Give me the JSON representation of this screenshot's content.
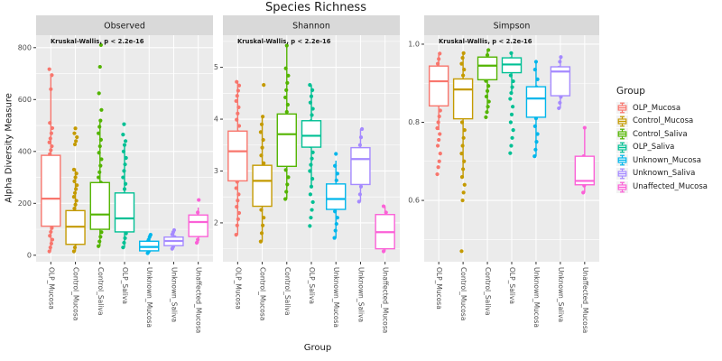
{
  "chart_data": {
    "type": "boxplot",
    "title": "Species Richness",
    "xlabel": "Group",
    "ylabel": "Alpha Diversity Measure",
    "annotation": "Kruskal-Wallis, p < 2.2e-16",
    "facets": [
      "Observed",
      "Shannon",
      "Simpson"
    ],
    "categories": [
      "OLP_Mucosa",
      "Control_Mucosa",
      "Control_Saliva",
      "OLP_Saliva",
      "Unknown_Mucosa",
      "Unknown_Saliva",
      "Unaffected_Mucosa"
    ],
    "legend": {
      "title": "Group",
      "items": [
        {
          "label": "OLP_Mucosa",
          "color": "#F8766D"
        },
        {
          "label": "Control_Mucosa",
          "color": "#C49A00"
        },
        {
          "label": "Control_Saliva",
          "color": "#53B400"
        },
        {
          "label": "OLP_Saliva",
          "color": "#00C094"
        },
        {
          "label": "Unknown_Mucosa",
          "color": "#00B6EB"
        },
        {
          "label": "Unknown_Saliva",
          "color": "#A58AFF"
        },
        {
          "label": "Unaffected_Mucosa",
          "color": "#FB61D7"
        }
      ]
    },
    "panels": [
      {
        "name": "Observed",
        "ylim": [
          -25,
          848
        ],
        "y_ticks": [
          {
            "v": 0,
            "label": "0"
          },
          {
            "v": 200,
            "label": "200"
          },
          {
            "v": 400,
            "label": "400"
          },
          {
            "v": 600,
            "label": "600"
          },
          {
            "v": 800,
            "label": "800"
          }
        ],
        "y_minor": [
          100,
          300,
          500,
          700
        ],
        "groups": [
          {
            "box": {
              "low": 18,
              "q1": 112,
              "med": 218,
              "q3": 385,
              "high": 700
            },
            "points": [
              15,
              30,
              45,
              60,
              75,
              90,
              105,
              120,
              135,
              150,
              165,
              180,
              195,
              210,
              225,
              240,
              255,
              270,
              285,
              300,
              315,
              330,
              345,
              360,
              375,
              390,
              405,
              420,
              435,
              450,
              470,
              490,
              510,
              640,
              694,
              717
            ]
          },
          {
            "box": {
              "low": 15,
              "q1": 42,
              "med": 110,
              "q3": 172,
              "high": 335
            },
            "points": [
              15,
              30,
              45,
              60,
              75,
              90,
              105,
              120,
              135,
              150,
              165,
              180,
              195,
              210,
              225,
              240,
              255,
              270,
              285,
              300,
              315,
              330,
              427,
              440,
              455,
              470,
              489
            ]
          },
          {
            "box": {
              "low": 35,
              "q1": 100,
              "med": 157,
              "q3": 280,
              "high": 519
            },
            "points": [
              35,
              53,
              71,
              89,
              107,
              125,
              143,
              161,
              180,
              200,
              220,
              240,
              260,
              280,
              300,
              320,
              345,
              370,
              395,
              420,
              445,
              470,
              495,
              519,
              560,
              624,
              726,
              810
            ]
          },
          {
            "box": {
              "low": 30,
              "q1": 90,
              "med": 142,
              "q3": 240,
              "high": 425
            },
            "points": [
              30,
              48,
              66,
              84,
              102,
              120,
              138,
              156,
              175,
              195,
              215,
              235,
              255,
              275,
              300,
              325,
              350,
              375,
              400,
              425,
              440,
              465,
              505
            ]
          },
          {
            "box": {
              "low": 8,
              "q1": 17,
              "med": 32,
              "q3": 54,
              "high": 79
            },
            "points": [
              8,
              14,
              20,
              26,
              32,
              38,
              45,
              52,
              60,
              70,
              79
            ]
          },
          {
            "box": {
              "low": 25,
              "q1": 37,
              "med": 55,
              "q3": 70,
              "high": 97
            },
            "points": [
              25,
              33,
              41,
              48,
              55,
              62,
              70,
              80,
              89,
              97
            ]
          },
          {
            "box": {
              "low": 48,
              "q1": 72,
              "med": 128,
              "q3": 155,
              "high": 184
            },
            "points": [
              48,
              60,
              75,
              90,
              105,
              120,
              135,
              150,
              165,
              213
            ]
          }
        ]
      },
      {
        "name": "Shannon",
        "ylim": [
          1.25,
          5.62
        ],
        "y_ticks": [
          {
            "v": 2,
            "label": "2"
          },
          {
            "v": 3,
            "label": "3"
          },
          {
            "v": 4,
            "label": "4"
          },
          {
            "v": 5,
            "label": "5"
          }
        ],
        "y_minor": [
          1.5,
          2.5,
          3.5,
          4.5,
          5.5
        ],
        "groups": [
          {
            "box": {
              "low": 1.77,
              "q1": 2.81,
              "med": 3.38,
              "q3": 3.77,
              "high": 4.72
            },
            "points": [
              1.77,
              1.95,
              2.07,
              2.19,
              2.31,
              2.43,
              2.55,
              2.67,
              2.79,
              2.91,
              3.03,
              3.15,
              3.27,
              3.39,
              3.51,
              3.63,
              3.75,
              3.87,
              3.99,
              4.11,
              4.23,
              4.35,
              4.45,
              4.55,
              4.65,
              4.72
            ]
          },
          {
            "box": {
              "low": 1.64,
              "q1": 2.32,
              "med": 2.81,
              "q3": 3.11,
              "high": 4.05
            },
            "points": [
              1.64,
              1.8,
              1.95,
              2.1,
              2.25,
              2.4,
              2.55,
              2.7,
              2.85,
              3.0,
              3.15,
              3.3,
              3.45,
              3.6,
              3.75,
              3.9,
              4.05,
              4.66
            ]
          },
          {
            "box": {
              "low": 2.46,
              "q1": 3.09,
              "med": 3.71,
              "q3": 4.1,
              "high": 5.42
            },
            "points": [
              2.46,
              2.6,
              2.74,
              2.88,
              3.02,
              3.16,
              3.3,
              3.44,
              3.58,
              3.72,
              3.86,
              4.0,
              4.14,
              4.28,
              4.42,
              4.56,
              4.7,
              4.84,
              4.98,
              5.42
            ]
          },
          {
            "box": {
              "low": 2.7,
              "q1": 3.46,
              "med": 3.68,
              "q3": 3.97,
              "high": 4.66
            },
            "points": [
              1.94,
              2.1,
              2.25,
              2.4,
              2.55,
              2.7,
              2.85,
              3.0,
              3.12,
              3.24,
              3.36,
              3.48,
              3.6,
              3.72,
              3.84,
              3.96,
              4.08,
              4.2,
              4.32,
              4.44,
              4.56,
              4.66
            ]
          },
          {
            "box": {
              "low": 1.71,
              "q1": 2.26,
              "med": 2.46,
              "q3": 2.75,
              "high": 3.2
            },
            "points": [
              1.71,
              1.85,
              1.98,
              2.1,
              2.22,
              2.34,
              2.46,
              2.58,
              2.7,
              2.82,
              2.95,
              3.1,
              3.33
            ]
          },
          {
            "box": {
              "low": 2.41,
              "q1": 2.74,
              "med": 3.23,
              "q3": 3.45,
              "high": 3.81
            },
            "points": [
              2.41,
              2.55,
              2.7,
              2.85,
              3.0,
              3.12,
              3.24,
              3.36,
              3.5,
              3.65,
              3.81
            ]
          },
          {
            "box": {
              "low": 1.45,
              "q1": 1.5,
              "med": 1.82,
              "q3": 2.16,
              "high": 2.32
            },
            "points": [
              1.45,
              1.58,
              1.7,
              1.82,
              1.95,
              2.08,
              2.2,
              2.32
            ]
          }
        ]
      },
      {
        "name": "Simpson",
        "ylim": [
          0.443,
          1.023
        ],
        "y_ticks": [
          {
            "v": 0.6,
            "label": "0.6"
          },
          {
            "v": 0.8,
            "label": "0.8"
          },
          {
            "v": 1.0,
            "label": "1.0"
          }
        ],
        "y_minor": [
          0.5,
          0.7,
          0.9
        ],
        "groups": [
          {
            "box": {
              "low": 0.78,
              "q1": 0.842,
              "med": 0.905,
              "q3": 0.944,
              "high": 0.976
            },
            "points": [
              0.667,
              0.685,
              0.7,
              0.72,
              0.74,
              0.755,
              0.77,
              0.785,
              0.8,
              0.815,
              0.83,
              0.845,
              0.86,
              0.875,
              0.89,
              0.905,
              0.92,
              0.935,
              0.95,
              0.962,
              0.976
            ]
          },
          {
            "box": {
              "low": 0.66,
              "q1": 0.809,
              "med": 0.884,
              "q3": 0.911,
              "high": 0.977
            },
            "points": [
              0.47,
              0.6,
              0.62,
              0.64,
              0.66,
              0.68,
              0.7,
              0.72,
              0.74,
              0.76,
              0.78,
              0.8,
              0.815,
              0.83,
              0.845,
              0.86,
              0.875,
              0.89,
              0.905,
              0.92,
              0.935,
              0.95,
              0.965,
              0.977
            ]
          },
          {
            "box": {
              "low": 0.83,
              "q1": 0.909,
              "med": 0.945,
              "q3": 0.967,
              "high": 0.985
            },
            "points": [
              0.813,
              0.826,
              0.84,
              0.853,
              0.866,
              0.88,
              0.893,
              0.906,
              0.92,
              0.933,
              0.946,
              0.96,
              0.972,
              0.985
            ]
          },
          {
            "box": {
              "low": 0.87,
              "q1": 0.927,
              "med": 0.948,
              "q3": 0.965,
              "high": 0.977
            },
            "points": [
              0.721,
              0.74,
              0.76,
              0.78,
              0.8,
              0.82,
              0.84,
              0.86,
              0.875,
              0.89,
              0.905,
              0.92,
              0.935,
              0.95,
              0.962,
              0.977
            ]
          },
          {
            "box": {
              "low": 0.713,
              "q1": 0.813,
              "med": 0.861,
              "q3": 0.891,
              "high": 0.955
            },
            "points": [
              0.713,
              0.73,
              0.75,
              0.77,
              0.79,
              0.81,
              0.83,
              0.85,
              0.87,
              0.89,
              0.91,
              0.935,
              0.955
            ]
          },
          {
            "box": {
              "low": 0.836,
              "q1": 0.868,
              "med": 0.93,
              "q3": 0.942,
              "high": 0.967
            },
            "points": [
              0.836,
              0.85,
              0.865,
              0.88,
              0.895,
              0.91,
              0.925,
              0.94,
              0.955,
              0.967
            ]
          },
          {
            "box": {
              "low": 0.62,
              "q1": 0.64,
              "med": 0.65,
              "q3": 0.713,
              "high": 0.786
            },
            "points": [
              0.62,
              0.638,
              0.652,
              0.668,
              0.713,
              0.786
            ]
          }
        ]
      }
    ]
  },
  "style": {
    "panel_bg": "#EBEBEB",
    "strip_bg": "#D9D9D9",
    "grid": "#FFFFFF",
    "tick_text": "#4D4D4D",
    "text": "#1A1A1A",
    "legend_key_bg": "#F2F2F2",
    "axis_tick": "#333333"
  }
}
